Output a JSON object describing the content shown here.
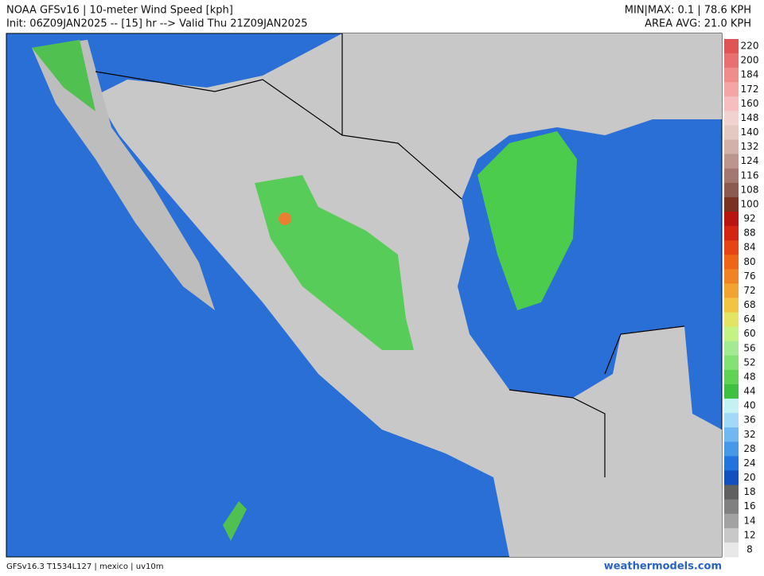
{
  "header": {
    "title": "NOAA GFSv16 | 10-meter Wind Speed [kph]",
    "subtitle": "Init: 06Z09JAN2025 -- [15] hr --> Valid Thu 21Z09JAN2025",
    "minmax": "MIN|MAX: 0.1 | 78.6 KPH",
    "area_avg": "AREA AVG: 21.0 KPH"
  },
  "colorbar": [
    {
      "label": 220,
      "color": "#e05454"
    },
    {
      "label": 200,
      "color": "#e87070"
    },
    {
      "label": 184,
      "color": "#ef8c8c"
    },
    {
      "label": 172,
      "color": "#f4a6a6"
    },
    {
      "label": 160,
      "color": "#f6bebe"
    },
    {
      "label": 148,
      "color": "#f2d2d0"
    },
    {
      "label": 140,
      "color": "#e4c8c2"
    },
    {
      "label": 132,
      "color": "#d2b2a8"
    },
    {
      "label": 124,
      "color": "#bc968c"
    },
    {
      "label": 116,
      "color": "#a47870"
    },
    {
      "label": 108,
      "color": "#8c5a50"
    },
    {
      "label": 100,
      "color": "#7a3222"
    },
    {
      "label": 92,
      "color": "#b81410"
    },
    {
      "label": 88,
      "color": "#d42412"
    },
    {
      "label": 84,
      "color": "#e64414"
    },
    {
      "label": 80,
      "color": "#ee6418"
    },
    {
      "label": 76,
      "color": "#f08424"
    },
    {
      "label": 72,
      "color": "#f2a432"
    },
    {
      "label": 68,
      "color": "#f2c444"
    },
    {
      "label": 64,
      "color": "#e4e464"
    },
    {
      "label": 60,
      "color": "#c4f284"
    },
    {
      "label": 56,
      "color": "#a4ea92"
    },
    {
      "label": 52,
      "color": "#84e274"
    },
    {
      "label": 48,
      "color": "#62d254"
    },
    {
      "label": 44,
      "color": "#40c040"
    },
    {
      "label": 40,
      "color": "#c4f2f2"
    },
    {
      "label": 36,
      "color": "#a2d8f8"
    },
    {
      "label": 32,
      "color": "#72b8f0"
    },
    {
      "label": 28,
      "color": "#4898e8"
    },
    {
      "label": 24,
      "color": "#2272e0"
    },
    {
      "label": 20,
      "color": "#1250c0"
    },
    {
      "label": 18,
      "color": "#606060"
    },
    {
      "label": 16,
      "color": "#808080"
    },
    {
      "label": 14,
      "color": "#a2a2a2"
    },
    {
      "label": 12,
      "color": "#c8c8c8"
    },
    {
      "label": 8,
      "color": "#e8e8e8"
    }
  ],
  "footer": {
    "left": "GFSv16.3 T1534L127 | mexico | uv10m",
    "right": "weathermodels.com"
  }
}
